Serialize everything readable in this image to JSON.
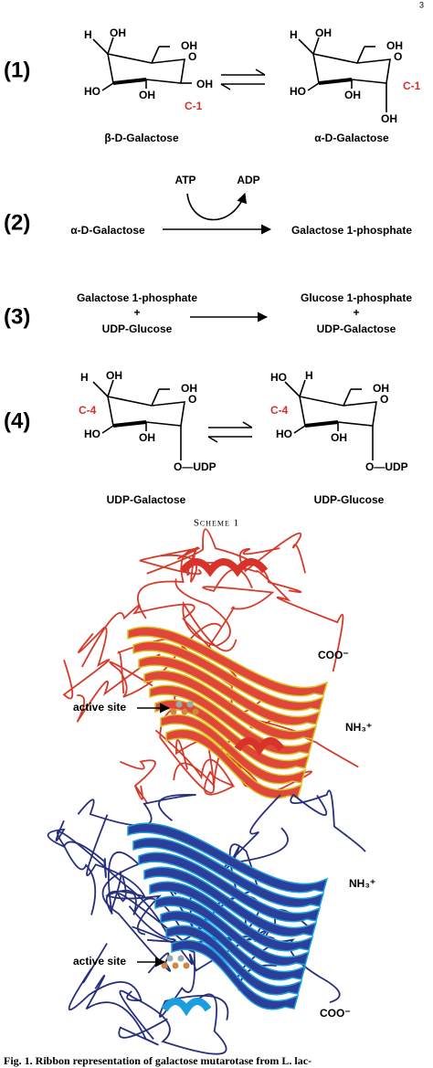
{
  "page_number": "3",
  "scheme": {
    "reactions": [
      {
        "number": "(1)",
        "structures": [
          {
            "labels": [
              "H",
              "OH",
              "OH",
              "O",
              "HO",
              "OH",
              "OH",
              "C-1"
            ],
            "name": "β-D-Galactose"
          },
          {
            "labels": [
              "H",
              "OH",
              "OH",
              "O",
              "HO",
              "OH",
              "C-1",
              "OH"
            ],
            "name": "α-D-Galactose"
          }
        ]
      },
      {
        "number": "(2)",
        "cofactor_in": "ATP",
        "cofactor_out": "ADP",
        "left": "α-D-Galactose",
        "right": "Galactose 1-phosphate"
      },
      {
        "number": "(3)",
        "left": [
          "Galactose 1-phosphate",
          "+",
          "UDP-Glucose"
        ],
        "right": [
          "Glucose 1-phosphate",
          "+",
          "UDP-Galactose"
        ]
      },
      {
        "number": "(4)",
        "structures": [
          {
            "labels": [
              "H",
              "OH",
              "C-4",
              "OH",
              "O",
              "HO",
              "OH",
              "O—UDP"
            ],
            "name": "UDP-Galactose"
          },
          {
            "labels": [
              "HO",
              "H",
              "C-4",
              "OH",
              "O",
              "HO",
              "OH",
              "O—UDP"
            ],
            "name": "UDP-Glucose"
          }
        ]
      }
    ],
    "caption": "Scheme 1"
  },
  "figure": {
    "labels": {
      "red_active_site": "active site",
      "red_cterm": "COO⁻",
      "red_nterm": "NH₃⁺",
      "blue_nterm": "NH₃⁺",
      "blue_active_site": "active site",
      "blue_cterm": "COO⁻"
    },
    "caption": "Fig. 1. Ribbon representation of galactose mutarotase from L. lac-"
  }
}
